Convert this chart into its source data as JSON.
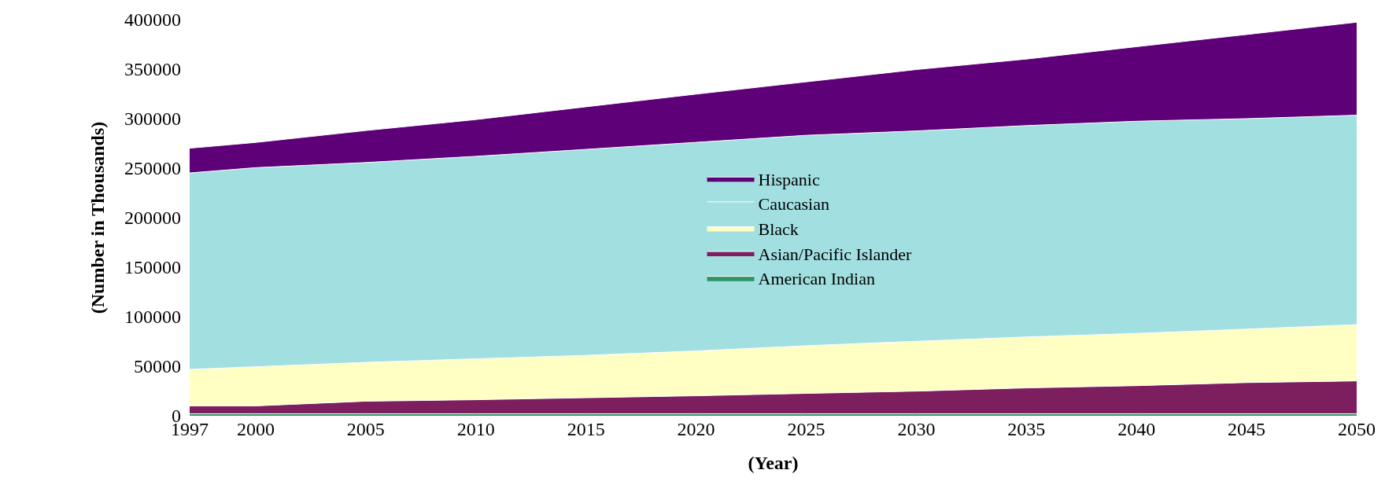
{
  "chart_data": {
    "type": "area",
    "stacked": true,
    "xlabel": "(Year)",
    "ylabel": "(Number in Thousands)",
    "x": [
      1997,
      2000,
      2005,
      2010,
      2015,
      2020,
      2025,
      2030,
      2035,
      2040,
      2045,
      2050
    ],
    "series": [
      {
        "name": "American Indian",
        "color": "#2e9466",
        "values": [
          2000,
          2000,
          2000,
          2000,
          2000,
          2000,
          2000,
          2000,
          2000,
          2000,
          2000,
          2000
        ]
      },
      {
        "name": "Asian/Pacific Islander",
        "color": "#7d1f5e",
        "values": [
          8000,
          8000,
          12700,
          14200,
          16200,
          18200,
          20600,
          22900,
          26100,
          28400,
          31500,
          33200
        ]
      },
      {
        "name": "Black",
        "color": "#ffffc4",
        "values": [
          36800,
          39500,
          39200,
          41300,
          42800,
          45200,
          48100,
          50300,
          51500,
          52700,
          54000,
          56800
        ]
      },
      {
        "name": "Caucasian",
        "color": "#a2dfe0",
        "values": [
          198400,
          201000,
          201800,
          204500,
          208000,
          210700,
          212500,
          212400,
          213400,
          214300,
          212500,
          211500
        ]
      },
      {
        "name": "Hispanic",
        "color": "#5e0077",
        "values": [
          25000,
          25500,
          32300,
          37100,
          43000,
          48700,
          54000,
          62000,
          67200,
          75300,
          85000,
          93900
        ]
      }
    ],
    "xlim": [
      1997,
      2050
    ],
    "xticks": [
      1997,
      2000,
      2005,
      2010,
      2015,
      2020,
      2025,
      2030,
      2035,
      2040,
      2045,
      2050
    ],
    "ylim": [
      0,
      400000
    ],
    "yticks": [
      0,
      50000,
      100000,
      150000,
      200000,
      250000,
      300000,
      350000,
      400000
    ],
    "legend": "center"
  }
}
